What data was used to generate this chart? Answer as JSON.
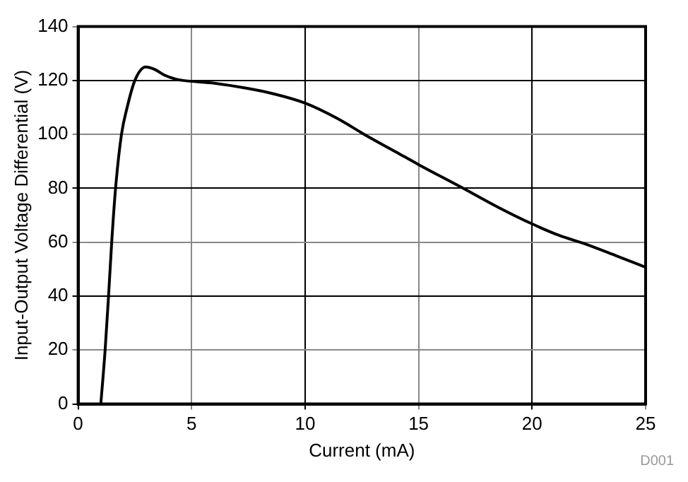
{
  "chart_data": {
    "type": "line",
    "xlabel": "Current (mA)",
    "ylabel": "Input-Output Voltage Differential (V)",
    "annotations": [
      "D001"
    ],
    "series": [
      {
        "color": "#000000",
        "x": [
          1,
          1.19,
          1.34,
          1.48,
          1.65,
          1.91,
          2.16,
          2.5,
          2.98,
          3.4,
          3.8,
          4.3,
          4.63,
          6,
          7.5,
          8.64,
          10,
          11.4,
          12.73,
          14,
          15,
          16.97,
          18.5,
          20,
          21.2,
          22.4,
          23.7,
          25
        ],
        "values": [
          0,
          20,
          40,
          60,
          80,
          100,
          110,
          120,
          125,
          124,
          122,
          120.5,
          120,
          119,
          117,
          115,
          111.6,
          106,
          99.4,
          93.5,
          88.8,
          80,
          73,
          66.8,
          62.5,
          59.2,
          55,
          50.7
        ]
      }
    ],
    "xlim": [
      0,
      25
    ],
    "xticks": [
      0,
      5,
      10,
      15,
      20,
      25
    ],
    "ylim": [
      0,
      140
    ],
    "yticks": [
      0,
      20,
      40,
      60,
      80,
      100,
      120,
      140
    ],
    "grid": true,
    "legend": false,
    "marker": "none",
    "line_style": "solid"
  }
}
